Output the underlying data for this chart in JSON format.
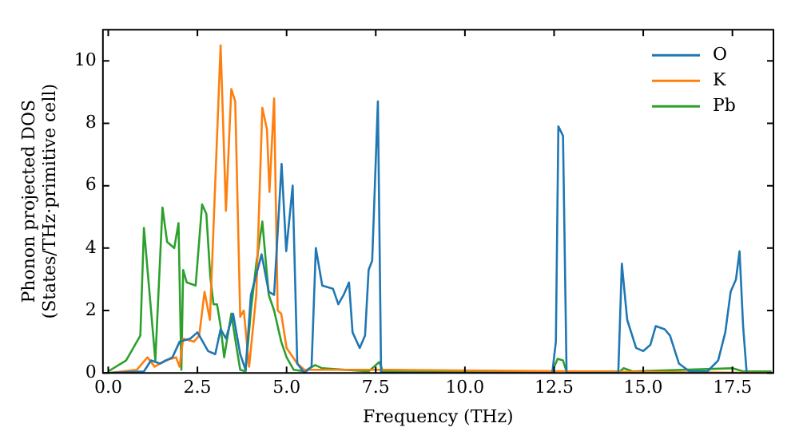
{
  "chart_data": {
    "type": "line",
    "xlabel": "Frequency (THz)",
    "ylabel": "Phonon projected DOS\n(States/THz·primitive cell)",
    "xlim": [
      -0.15,
      18.65
    ],
    "ylim": [
      0,
      11
    ],
    "xticks": [
      {
        "value": 0,
        "label": "0.0"
      },
      {
        "value": 2.5,
        "label": "2.5"
      },
      {
        "value": 5,
        "label": "5.0"
      },
      {
        "value": 7.5,
        "label": "7.5"
      },
      {
        "value": 10,
        "label": "10.0"
      },
      {
        "value": 12.5,
        "label": "12.5"
      },
      {
        "value": 15,
        "label": "15.0"
      },
      {
        "value": 17.5,
        "label": "17.5"
      }
    ],
    "yticks": [
      0,
      2,
      4,
      6,
      8,
      10
    ],
    "grid": false,
    "legend": "top right",
    "marker": "none",
    "line_style": "solid",
    "series": [
      {
        "name": "O",
        "color": "#1f77b4",
        "x": [
          0,
          1.0,
          1.2,
          1.45,
          1.8,
          2.0,
          2.3,
          2.5,
          2.8,
          3.0,
          3.15,
          3.3,
          3.5,
          3.7,
          3.85,
          4.0,
          4.3,
          4.5,
          4.65,
          4.86,
          4.99,
          5.17,
          5.3,
          5.5,
          5.7,
          5.82,
          6.0,
          6.3,
          6.45,
          6.6,
          6.75,
          6.85,
          7.05,
          7.2,
          7.3,
          7.4,
          7.56,
          7.65,
          12.45,
          12.55,
          12.62,
          12.75,
          12.85,
          14.3,
          14.4,
          14.55,
          14.8,
          15.0,
          15.2,
          15.35,
          15.6,
          15.75,
          16.0,
          16.3,
          16.8,
          17.1,
          17.3,
          17.45,
          17.6,
          17.7,
          17.8,
          17.9
        ],
        "values": [
          0,
          0.05,
          0.4,
          0.3,
          0.5,
          1.0,
          1.1,
          1.3,
          0.7,
          0.6,
          1.4,
          1.1,
          1.9,
          0.6,
          0.1,
          2.5,
          3.8,
          2.6,
          2.5,
          6.7,
          3.9,
          6.0,
          0.3,
          0,
          0.2,
          4.0,
          2.8,
          2.7,
          2.2,
          2.5,
          2.9,
          1.3,
          0.8,
          1.2,
          3.3,
          3.6,
          8.7,
          0,
          0,
          1,
          7.9,
          7.6,
          0,
          0,
          3.5,
          1.7,
          0.8,
          0.7,
          0.9,
          1.5,
          1.4,
          1.2,
          0.3,
          0.05,
          0.05,
          0.4,
          1.3,
          2.6,
          3.0,
          3.9,
          1.5,
          0
        ]
      },
      {
        "name": "K",
        "color": "#ff7f0e",
        "x": [
          0,
          0.8,
          1.1,
          1.3,
          1.6,
          1.9,
          2.0,
          2.1,
          2.4,
          2.55,
          2.7,
          2.85,
          3.15,
          3.3,
          3.45,
          3.56,
          3.7,
          3.8,
          3.95,
          4.15,
          4.32,
          4.45,
          4.52,
          4.65,
          4.75,
          4.85,
          5.0,
          5.3,
          5.5,
          6.0,
          7.8,
          18.6
        ],
        "values": [
          0,
          0.1,
          0.5,
          0.2,
          0.4,
          0.5,
          0.2,
          1.1,
          1.0,
          1.2,
          2.6,
          1.7,
          10.5,
          5.2,
          9.1,
          8.7,
          1.8,
          2.0,
          0.2,
          2.5,
          8.5,
          7.8,
          5.8,
          8.8,
          2.0,
          1.9,
          0.8,
          0.3,
          0.1,
          0.1,
          0.1,
          0
        ]
      },
      {
        "name": "Pb",
        "color": "#2ca02c",
        "x": [
          0,
          0.5,
          0.9,
          1.0,
          1.32,
          1.52,
          1.65,
          1.85,
          1.97,
          2.05,
          2.1,
          2.2,
          2.45,
          2.63,
          2.75,
          2.86,
          2.95,
          3.05,
          3.15,
          3.25,
          3.35,
          3.45,
          3.6,
          3.7,
          3.85,
          4.0,
          4.15,
          4.32,
          4.5,
          4.65,
          4.85,
          5.0,
          5.2,
          5.5,
          5.8,
          6.0,
          7.3,
          7.45,
          7.6,
          7.7,
          12.45,
          12.6,
          12.75,
          12.85,
          14.35,
          14.45,
          14.7,
          17.5,
          17.8,
          18.6
        ],
        "values": [
          0.05,
          0.4,
          1.2,
          4.65,
          0.4,
          5.3,
          4.2,
          4.0,
          4.8,
          0.1,
          3.3,
          2.9,
          2.8,
          5.4,
          5.1,
          3.1,
          2.2,
          2.2,
          1.5,
          0.5,
          1.2,
          1.9,
          0.8,
          0.1,
          0.05,
          2.0,
          3.5,
          4.85,
          2.5,
          2.0,
          1.0,
          0.5,
          0.1,
          0.05,
          0.25,
          0.15,
          0.05,
          0.2,
          0.35,
          0.05,
          0.05,
          0.45,
          0.4,
          0.05,
          0.05,
          0.15,
          0.05,
          0.15,
          0.05,
          0.05
        ]
      }
    ]
  }
}
